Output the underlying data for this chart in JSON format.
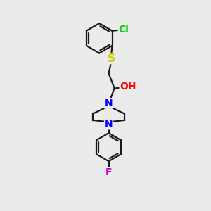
{
  "background_color": "#ebebeb",
  "bond_color": "#1a1a1a",
  "bond_width": 1.6,
  "atom_colors": {
    "S": "#cccc00",
    "Cl": "#00cc00",
    "O": "#ff0000",
    "N": "#0000ff",
    "F": "#cc00cc",
    "C": "#1a1a1a"
  },
  "figsize": [
    3.0,
    3.0
  ],
  "dpi": 100
}
